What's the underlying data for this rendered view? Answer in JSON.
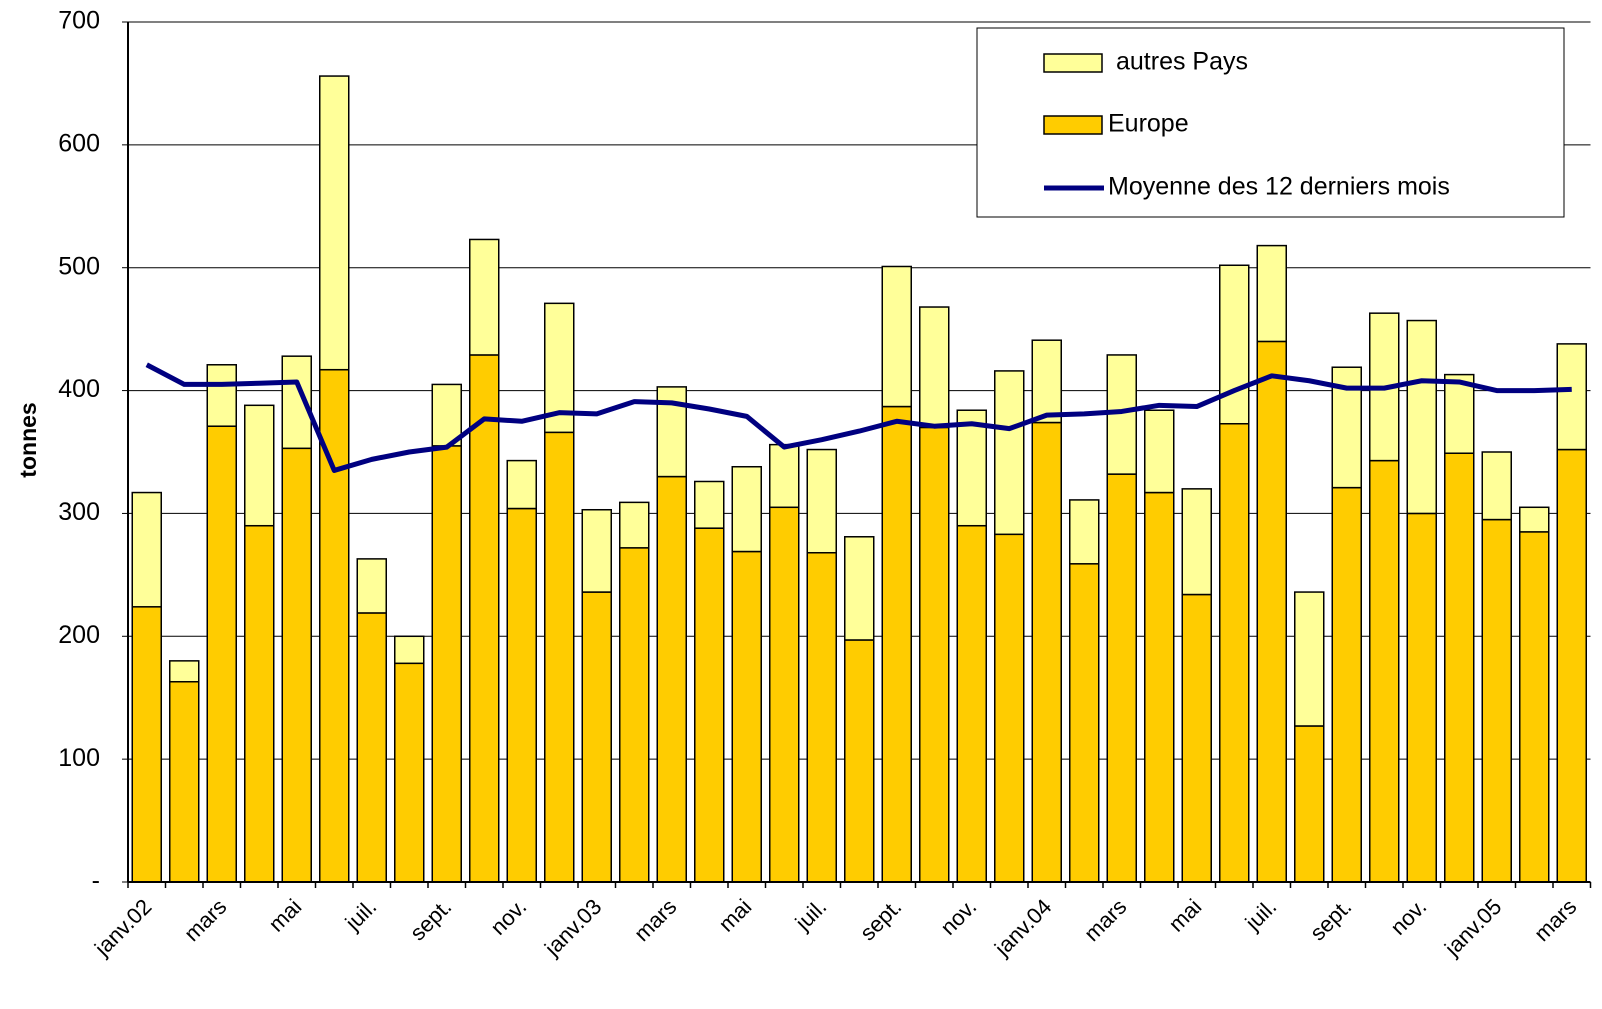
{
  "chart_data": {
    "type": "bar",
    "stacked": true,
    "y_label": "tonnes",
    "categories": [
      "janv.02",
      null,
      "mars",
      null,
      "mai",
      null,
      "juil.",
      null,
      "sept.",
      null,
      "nov.",
      null,
      "janv.03",
      null,
      "mars",
      null,
      "mai",
      null,
      "juil.",
      null,
      "sept.",
      null,
      "nov.",
      null,
      "janv.04",
      null,
      "mars",
      null,
      "mai",
      null,
      "juil.",
      null,
      "sept.",
      null,
      "nov.",
      null,
      "janv.05",
      null,
      "mars"
    ],
    "series": [
      {
        "name": "Europe",
        "color": "#ffcc00",
        "values": [
          224,
          163,
          371,
          290,
          353,
          417,
          219,
          178,
          355,
          429,
          304,
          366,
          236,
          272,
          330,
          288,
          269,
          305,
          268,
          197,
          387,
          370,
          290,
          283,
          374,
          259,
          332,
          317,
          234,
          373,
          440,
          127,
          321,
          343,
          300,
          349,
          295,
          285,
          352
        ]
      },
      {
        "name": "autres Pays",
        "color": "#ffff99",
        "values": [
          93,
          17,
          50,
          98,
          75,
          239,
          44,
          22,
          50,
          94,
          39,
          105,
          67,
          37,
          73,
          38,
          69,
          51,
          84,
          84,
          114,
          98,
          94,
          133,
          67,
          52,
          97,
          67,
          86,
          129,
          78,
          109,
          98,
          120,
          157,
          64,
          55,
          20,
          86
        ]
      },
      {
        "name": "Moyenne des 12 derniers mois",
        "color": "#000080",
        "type": "line",
        "values": [
          421,
          405,
          405,
          406,
          407,
          335,
          344,
          350,
          354,
          377,
          375,
          382,
          381,
          391,
          390,
          385,
          379,
          354,
          360,
          367,
          375,
          371,
          373,
          369,
          380,
          381,
          383,
          388,
          387,
          400,
          412,
          408,
          402,
          402,
          408,
          407,
          400,
          400,
          401
        ]
      }
    ],
    "ylim": [
      0,
      700
    ],
    "yticks": [
      {
        "value": 0,
        "label": "-"
      },
      100,
      200,
      300,
      400,
      500,
      600,
      700
    ],
    "grid": true,
    "legend": "top-right"
  }
}
